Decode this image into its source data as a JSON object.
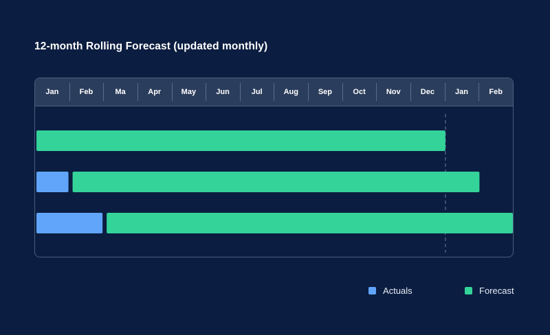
{
  "title": "12-month Rolling Forecast (updated monthly)",
  "colors": {
    "background": "#0b1d40",
    "header": "#2b3d5c",
    "actuals": "#60a5fa",
    "forecast": "#34d399",
    "divider": "#4a5f80"
  },
  "chart_data": {
    "type": "bar",
    "orientation": "horizontal-timeline",
    "categories": [
      "Jan",
      "Feb",
      "Ma",
      "Apr",
      "May",
      "Jun",
      "Jul",
      "Aug",
      "Sep",
      "Oct",
      "Nov",
      "Dec",
      "Jan",
      "Feb"
    ],
    "rows": [
      {
        "actuals": [
          0,
          0
        ],
        "forecast": [
          0,
          12
        ]
      },
      {
        "actuals": [
          0,
          1
        ],
        "forecast": [
          1,
          13
        ]
      },
      {
        "actuals": [
          0,
          2
        ],
        "forecast": [
          2,
          14
        ]
      }
    ],
    "reference_line": 12,
    "legend": [
      {
        "key": "actuals",
        "label": "Actuals"
      },
      {
        "key": "forecast",
        "label": "Forecast"
      }
    ],
    "legend_position": "bottom-right",
    "grid": false
  }
}
